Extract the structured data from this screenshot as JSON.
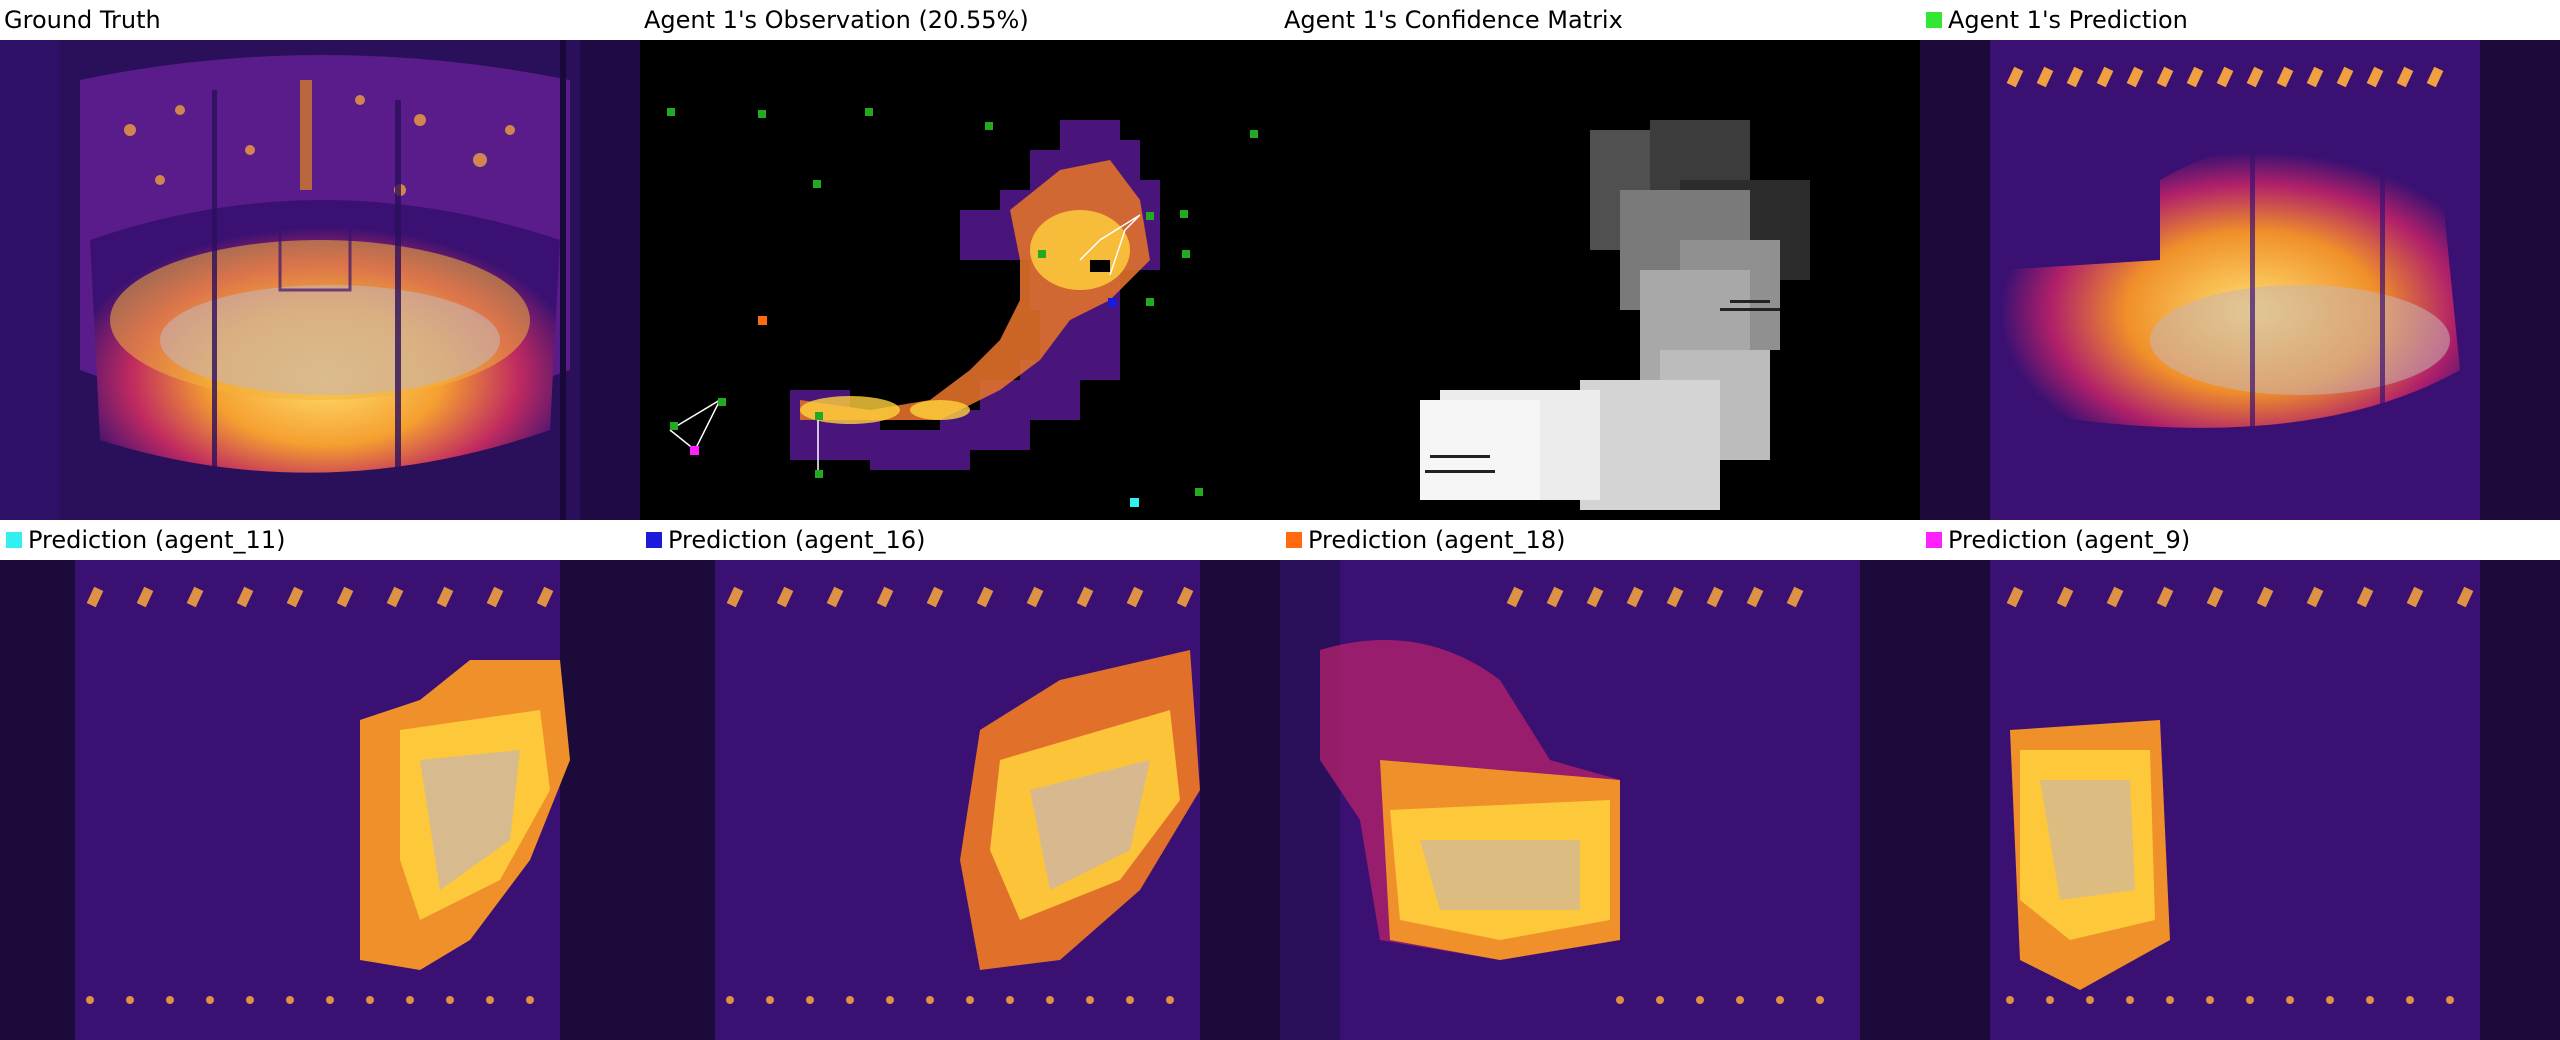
{
  "panels": [
    {
      "title": "Ground Truth"
    },
    {
      "title": "Agent 1's Observation (20.55%)"
    },
    {
      "title": "Agent 1's Confidence Matrix"
    },
    {
      "title": "Agent 1's Prediction",
      "swatch": "#33e633"
    },
    {
      "title": "Prediction (agent_11)",
      "swatch": "#33f0f0"
    },
    {
      "title": "Prediction (agent_16)",
      "swatch": "#1a1adc"
    },
    {
      "title": "Prediction (agent_18)",
      "swatch": "#ff6a10"
    },
    {
      "title": "Prediction (agent_9)",
      "swatch": "#ff20ff"
    }
  ],
  "colors": {
    "background_purple": "#3a1172",
    "deep_purple": "#1c0a3a",
    "magenta": "#b0206a",
    "orange": "#f07020",
    "yellow": "#ffd23c",
    "grey": "#c8b4b4"
  }
}
